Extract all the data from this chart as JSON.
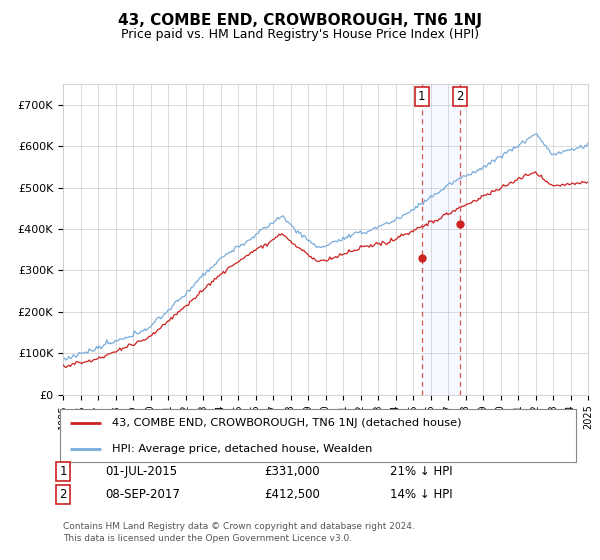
{
  "title": "43, COMBE END, CROWBOROUGH, TN6 1NJ",
  "subtitle": "Price paid vs. HM Land Registry's House Price Index (HPI)",
  "ylim": [
    0,
    750000
  ],
  "yticks": [
    0,
    100000,
    200000,
    300000,
    400000,
    500000,
    600000,
    700000
  ],
  "ytick_labels": [
    "£0",
    "£100K",
    "£200K",
    "£300K",
    "£400K",
    "£500K",
    "£600K",
    "£700K"
  ],
  "hpi_color": "#7aaddb",
  "price_color": "#cc2222",
  "marker1_price": 331000,
  "marker2_price": 412500,
  "marker1_year": 2015,
  "marker1_month": 7,
  "marker2_year": 2017,
  "marker2_month": 9,
  "legend_house": "43, COMBE END, CROWBOROUGH, TN6 1NJ (detached house)",
  "legend_hpi": "HPI: Average price, detached house, Wealden",
  "anno1_date": "01-JUL-2015",
  "anno1_price": "£331,000",
  "anno1_pct": "21% ↓ HPI",
  "anno2_date": "08-SEP-2017",
  "anno2_price": "£412,500",
  "anno2_pct": "14% ↓ HPI",
  "footer": "Contains HM Land Registry data © Crown copyright and database right 2024.\nThis data is licensed under the Open Government Licence v3.0.",
  "background_color": "#ffffff",
  "grid_color": "#cccccc",
  "start_year": 1995,
  "end_year": 2025
}
